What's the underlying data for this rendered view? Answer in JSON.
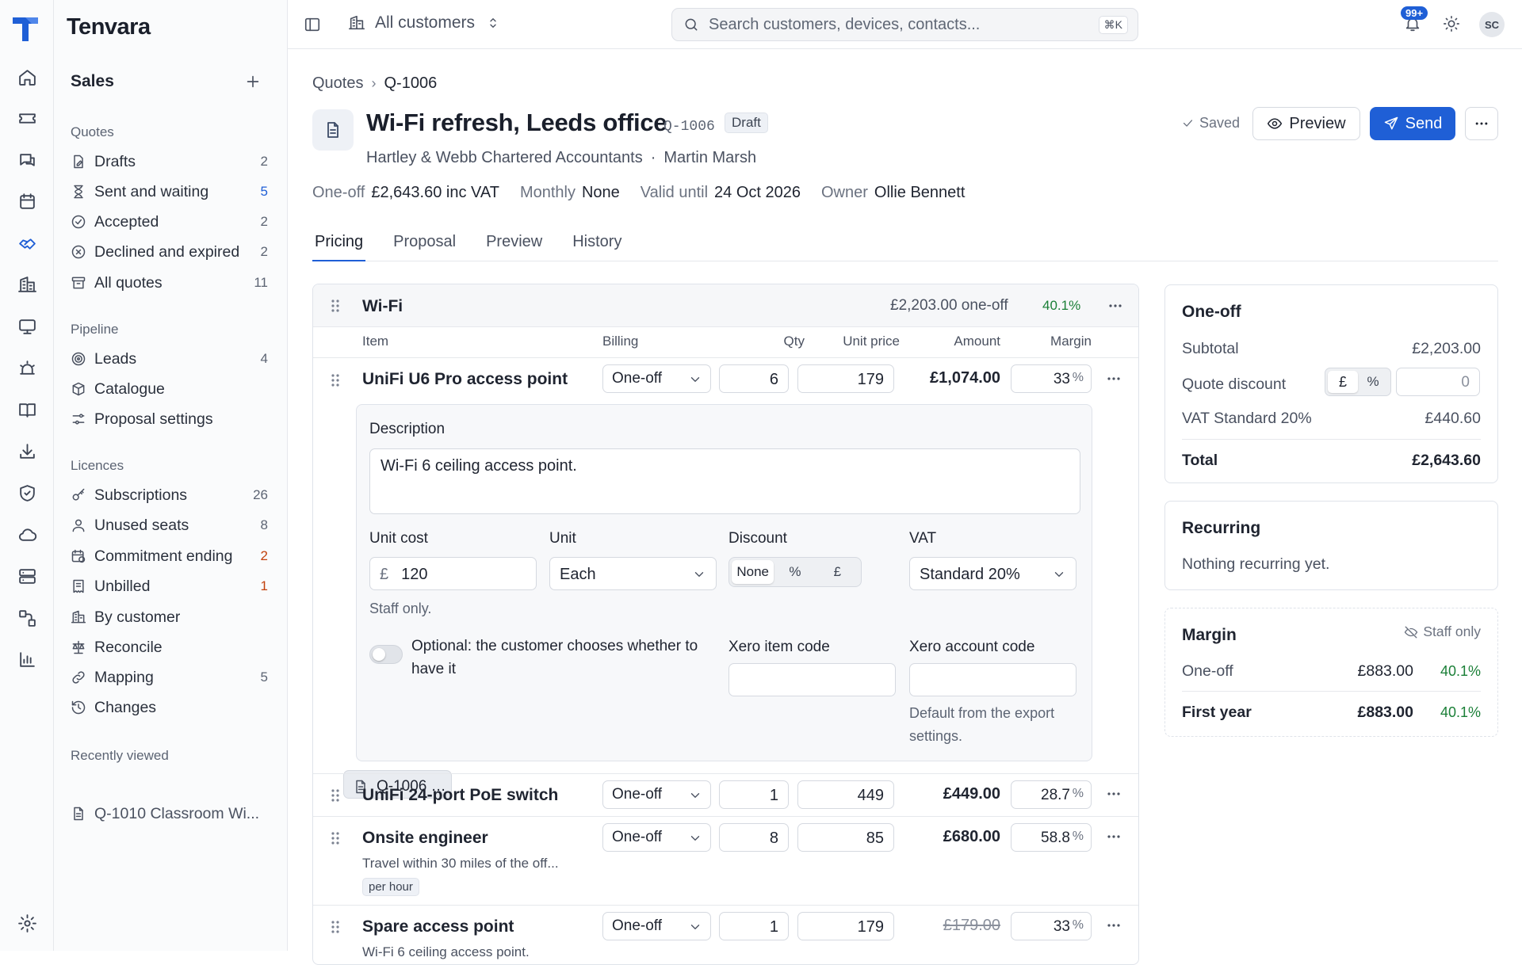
{
  "app": {
    "brand": "Tenvara"
  },
  "topbar": {
    "scope": "All customers",
    "search_placeholder": "Search customers, devices, contacts...",
    "search_shortcut": "⌘K",
    "notifications": "99+",
    "avatar": "SC"
  },
  "sidebar": {
    "section": "Sales",
    "groups": {
      "quotes": "Quotes",
      "pipeline": "Pipeline",
      "licences": "Licences",
      "recent": "Recently viewed"
    },
    "quotes": [
      {
        "label": "Drafts",
        "count": "2"
      },
      {
        "label": "Sent and waiting",
        "count": "5"
      },
      {
        "label": "Accepted",
        "count": "2"
      },
      {
        "label": "Declined and expired",
        "count": "2"
      },
      {
        "label": "All quotes",
        "count": "11"
      }
    ],
    "pipeline": [
      {
        "label": "Leads",
        "count": "4"
      },
      {
        "label": "Catalogue",
        "count": ""
      },
      {
        "label": "Proposal settings",
        "count": ""
      }
    ],
    "licences": [
      {
        "label": "Subscriptions",
        "count": "26"
      },
      {
        "label": "Unused seats",
        "count": "8"
      },
      {
        "label": "Commitment ending",
        "count": "2"
      },
      {
        "label": "Unbilled",
        "count": "1"
      },
      {
        "label": "By customer",
        "count": ""
      },
      {
        "label": "Reconcile",
        "count": ""
      },
      {
        "label": "Mapping",
        "count": "5"
      },
      {
        "label": "Changes",
        "count": ""
      }
    ],
    "recent": [
      {
        "label": "Q-1006 Wi-Fi refresh..."
      },
      {
        "label": "Q-1010 Classroom Wi..."
      }
    ]
  },
  "header": {
    "breadcrumb": [
      "Quotes",
      "Q-1006"
    ],
    "title": "Wi-Fi refresh, Leeds office",
    "quote_no": "Q-1006",
    "status": "Draft",
    "customer": "Hartley & Webb Chartered Accountants",
    "contact": "Martin Marsh",
    "saved": "Saved",
    "preview_label": "Preview",
    "send_label": "Send",
    "meta": [
      {
        "k": "One-off",
        "v": "£2,643.60 inc VAT"
      },
      {
        "k": "Monthly",
        "v": "None"
      },
      {
        "k": "Valid until",
        "v": "24 Oct 2026"
      },
      {
        "k": "Owner",
        "v": "Ollie Bennett"
      }
    ],
    "tabs": [
      "Pricing",
      "Proposal",
      "Preview",
      "History"
    ]
  },
  "group": {
    "name": "Wi-Fi",
    "total": "£2,203.00 one-off",
    "margin": "40.1%",
    "columns": [
      "Item",
      "Billing",
      "Qty",
      "Unit price",
      "Amount",
      "Margin"
    ],
    "items": [
      {
        "name": "UniFi U6 Pro access point",
        "billing": "One-off",
        "qty": "6",
        "price": "179",
        "amount": "£1,074.00",
        "margin": "33",
        "desc": "",
        "tag": ""
      },
      {
        "name": "UniFi 24-port PoE switch",
        "billing": "One-off",
        "qty": "1",
        "price": "449",
        "amount": "£449.00",
        "margin": "28.7",
        "desc": "",
        "tag": ""
      },
      {
        "name": "Onsite engineer",
        "billing": "One-off",
        "qty": "8",
        "price": "85",
        "amount": "£680.00",
        "margin": "58.8",
        "desc": "Travel within 30 miles of the off...",
        "tag": "per hour"
      },
      {
        "name": "Spare access point",
        "billing": "One-off",
        "qty": "1",
        "price": "179",
        "amount": "£179.00",
        "margin": "33",
        "desc": "Wi-Fi 6 ceiling access point.",
        "tag": ""
      }
    ],
    "pct": "%"
  },
  "detail": {
    "desc_label": "Description",
    "desc_value": "Wi-Fi 6 ceiling access point.",
    "unit_cost_label": "Unit cost",
    "currency": "£",
    "unit_cost": "120",
    "staff_only": "Staff only.",
    "unit_label": "Unit",
    "unit": "Each",
    "discount_label": "Discount",
    "discount_opts": [
      "None",
      "%",
      "£"
    ],
    "vat_label": "VAT",
    "vat": "Standard 20%",
    "optional_text": "Optional: the customer chooses whether to have it",
    "xero_item_label": "Xero item code",
    "xero_account_label": "Xero account code",
    "xero_hint": "Default from the export settings."
  },
  "summary": {
    "oneoff": {
      "title": "One-off",
      "subtotal_label": "Subtotal",
      "subtotal": "£2,203.00",
      "discount_label": "Quote discount",
      "disc_pound": "£",
      "disc_pct": "%",
      "discount_value": "0",
      "vat_label": "VAT Standard 20%",
      "vat": "£440.60",
      "total_label": "Total",
      "total": "£2,643.60"
    },
    "recurring": {
      "title": "Recurring",
      "text": "Nothing recurring yet."
    },
    "margin": {
      "title": "Margin",
      "staff": "Staff only",
      "oneoff_label": "One-off",
      "oneoff_value": "£883.00",
      "oneoff_pct": "40.1%",
      "year_label": "First year",
      "year_value": "£883.00",
      "year_pct": "40.1%"
    }
  }
}
